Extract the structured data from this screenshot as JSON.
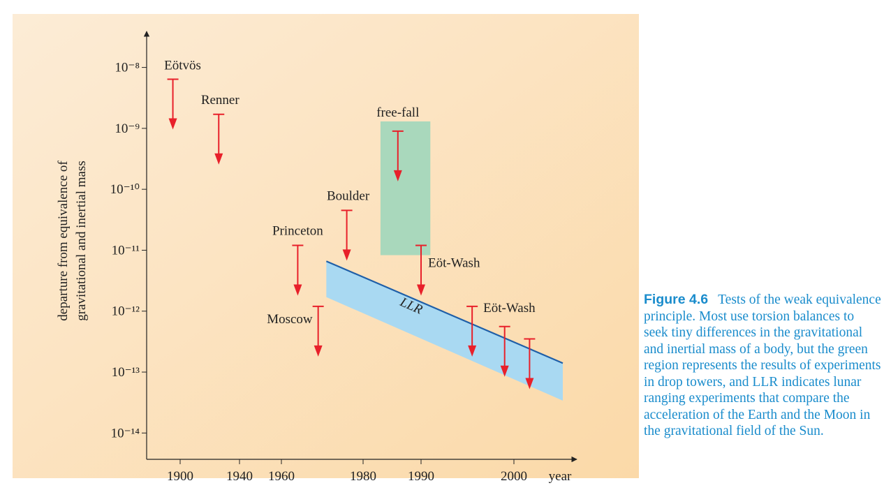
{
  "chart_data": {
    "type": "limits",
    "log_y": true,
    "ylabel": [
      "departure from equivalence of",
      "gravitational and inertial mass"
    ],
    "xlabel": "year",
    "xlim": [
      1877,
      2006
    ],
    "xticks": [
      1900,
      1940,
      1960,
      1980,
      1990,
      2000
    ],
    "ylim": [
      3.7e-15,
      3.9e-08
    ],
    "yticks": [
      {
        "value": 1e-08,
        "label": "10⁻⁸"
      },
      {
        "value": 1e-09,
        "label": "10⁻⁹"
      },
      {
        "value": 1e-10,
        "label": "10⁻¹⁰"
      },
      {
        "value": 1e-11,
        "label": "10⁻¹¹"
      },
      {
        "value": 1e-12,
        "label": "10⁻¹²"
      },
      {
        "value": 1e-13,
        "label": "10⁻¹³"
      },
      {
        "value": 1e-14,
        "label": "10⁻¹⁴"
      }
    ],
    "limits": {
      "color": "#e8202a",
      "labels": [
        "Eötvös",
        "Renner",
        "Princeton",
        "Moscow",
        "Boulder",
        "free-fall",
        "Eöt-Wash",
        "Eöt-Wash",
        null,
        null
      ],
      "x": [
        1895,
        1926,
        1964,
        1969,
        1976,
        1986,
        1990,
        1995.5,
        1999,
        2001.6
      ],
      "values": [
        6.4e-09,
        1.7e-09,
        1.2e-11,
        1.2e-12,
        4.5e-11,
        9e-10,
        1.2e-11,
        1.2e-12,
        5.6e-13,
        3.5e-13
      ]
    },
    "region": {
      "color": "#a9d8bc",
      "x": [
        1983,
        1991
      ],
      "y": [
        8.3e-12,
        1.3e-09
      ]
    },
    "band": {
      "name": "LLR",
      "fill": "#a9d9f2",
      "line": "#1f5fa8",
      "x": [
        1971,
        2005
      ],
      "upper": [
        6.6e-12,
        1.4e-13
      ],
      "lower": [
        1.7e-12,
        3.4e-14
      ]
    }
  },
  "caption": {
    "label": "Figure 4.6",
    "text": "Tests of the weak equivalence principle. Most use torsion balances to seek tiny differences in the gravitational and inertial mass of a body, but the green region represents the results of experiments in drop towers, and LLR indicates lunar ranging experiments that compare the acceleration of the Earth and the Moon in the gravitational field of the Sun."
  }
}
